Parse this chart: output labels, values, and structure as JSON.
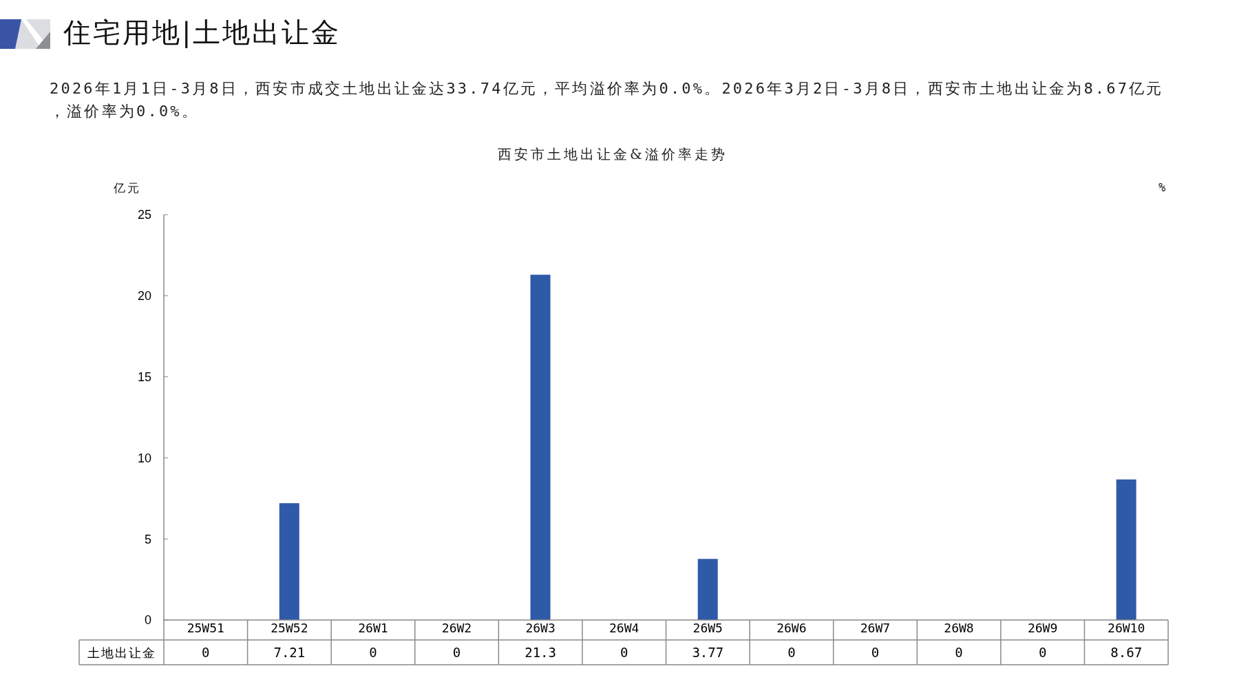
{
  "chart_data": {
    "type": "bar",
    "title": "住宅用地|土地出让金",
    "subtitle": "西安市土地出让金&溢价率走势",
    "annotations": [
      "2026年1月1日-3月8日，西安市成交土地出让金达33.74亿元，平均溢价率为0.0%。2026年3月2日-3月8日，西安市土地出让金为8.67亿元，溢价率为0.0%。"
    ],
    "ylabel": "亿元",
    "y2label": "%",
    "categories": [
      "25W51",
      "25W52",
      "26W1",
      "26W2",
      "26W3",
      "26W4",
      "26W5",
      "26W6",
      "26W7",
      "26W8",
      "26W9",
      "26W10"
    ],
    "series": [
      {
        "name": "土地出让金",
        "color": "#2e5aa8",
        "values": [
          0,
          7.21,
          0,
          0,
          21.3,
          0,
          3.77,
          0,
          0,
          0,
          0,
          8.67
        ]
      }
    ],
    "ylim": [
      0,
      25
    ],
    "yticks": [
      0,
      5,
      10,
      15,
      20,
      25
    ],
    "data_labels": true
  }
}
